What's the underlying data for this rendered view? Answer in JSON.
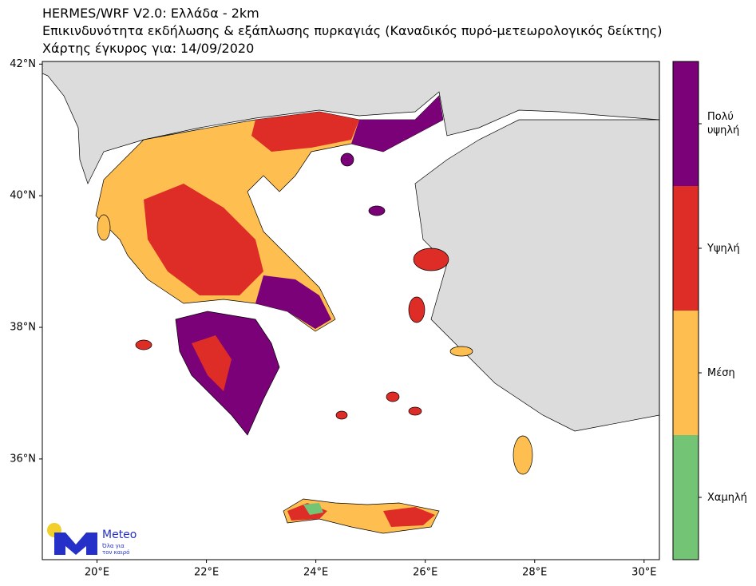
{
  "header": {
    "lines": [
      "HERMES/WRF V2.0: Ελλάδα - 2km",
      "Επικινδυνότητα εκδήλωσης & εξάπλωσης πυρκαγιάς (Καναδικός πυρό-μετεωρολογικός δείκτης)",
      "Χάρτης έγκυρος για: 14/09/2020"
    ]
  },
  "map": {
    "xlim": [
      19.0,
      30.28
    ],
    "ylim": [
      34.47,
      42.04
    ],
    "xticks": [
      {
        "value": 20,
        "label": "20°E"
      },
      {
        "value": 22,
        "label": "22°E"
      },
      {
        "value": 24,
        "label": "24°E"
      },
      {
        "value": 26,
        "label": "26°E"
      },
      {
        "value": 28,
        "label": "28°E"
      },
      {
        "value": 30,
        "label": "30°E"
      }
    ],
    "yticks": [
      {
        "value": 36,
        "label": "36°N"
      },
      {
        "value": 38,
        "label": "38°N"
      },
      {
        "value": 40,
        "label": "40°N"
      },
      {
        "value": 42,
        "label": "42°N"
      }
    ]
  },
  "legend": {
    "categories": [
      {
        "label": "Χαμηλή",
        "color": "#74c476"
      },
      {
        "label": "Μέση",
        "color": "#febf50"
      },
      {
        "label": "Υψηλή",
        "color": "#de2d26"
      },
      {
        "label": "Πολύ υψηλή",
        "color": "#7a0177"
      }
    ]
  },
  "logo": {
    "name": "Meteo",
    "tagline": [
      "Όλα για",
      "τον καιρό"
    ]
  }
}
